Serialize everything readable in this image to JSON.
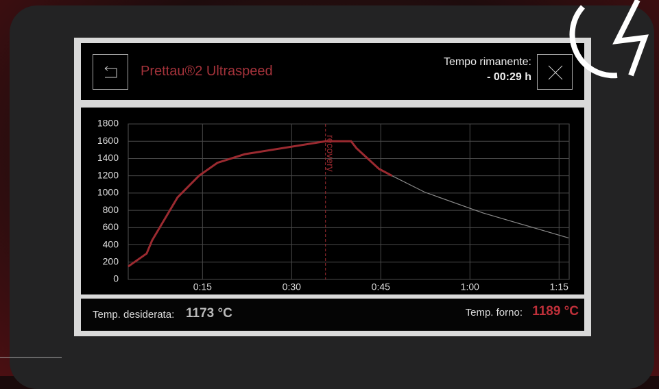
{
  "header": {
    "title": "Prettau®2 Ultraspeed",
    "time_label": "Tempo rimanente:",
    "time_value": "- 00:29 h"
  },
  "chart_data": {
    "type": "line",
    "xlim": [
      2.5,
      76.7
    ],
    "ylim": [
      0,
      1800
    ],
    "xticks": [
      {
        "value": 15,
        "label": "0:15"
      },
      {
        "value": 30,
        "label": "0:30"
      },
      {
        "value": 45,
        "label": "0:45"
      },
      {
        "value": 60,
        "label": "1:00"
      },
      {
        "value": 75,
        "label": "1:15"
      }
    ],
    "yticks": [
      0,
      200,
      400,
      600,
      800,
      1000,
      1200,
      1400,
      1600,
      1800
    ],
    "grid": true,
    "series": [
      {
        "color": "#8a8a8a",
        "x": [
          2.5,
          5.6,
          6.5,
          10.8,
          14.4,
          17.5,
          22.1,
          35.7,
          40.0,
          40.9,
          44.7,
          46.9,
          52.4,
          62.2,
          76.6
        ],
        "values": [
          150,
          300,
          450,
          950,
          1200,
          1350,
          1450,
          1600,
          1600,
          1520,
          1280,
          1200,
          1010,
          770,
          480
        ]
      },
      {
        "color": "#9b2a30",
        "x": [
          2.5,
          5.6,
          6.5,
          10.8,
          14.4,
          17.5,
          22.1,
          35.7,
          40.0,
          40.9,
          44.7,
          46.9
        ],
        "values": [
          150,
          300,
          450,
          950,
          1200,
          1350,
          1450,
          1600,
          1600,
          1520,
          1280,
          1200
        ]
      }
    ],
    "annotation": {
      "x": 35.7,
      "label": "recovery",
      "color": "#9b2a30"
    }
  },
  "footer": {
    "target_label": "Temp. desiderata:",
    "target_value": "1173 °C",
    "oven_label": "Temp. forno:",
    "oven_value": "1189 °C"
  }
}
